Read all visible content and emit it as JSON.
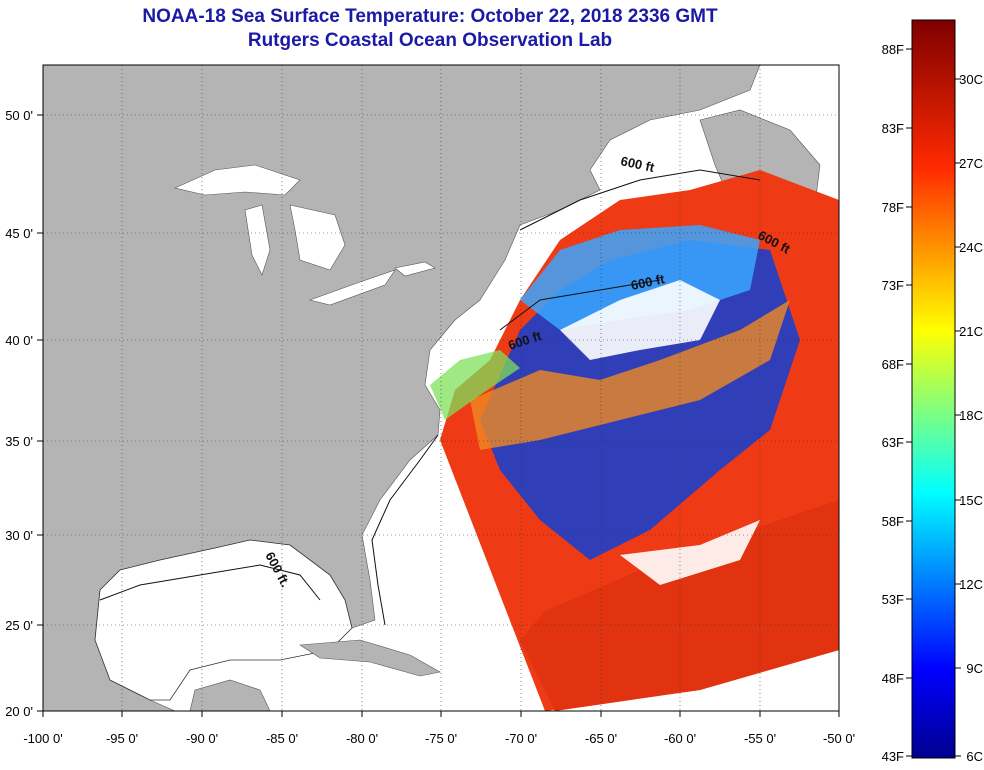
{
  "header": {
    "title_line1": "NOAA-18 Sea Surface Temperature:  October 22, 2018 2336 GMT",
    "title_line2": "Rutgers Coastal Ocean Observation Lab"
  },
  "map": {
    "lon_ticks": [
      "-100 0'",
      "-95 0'",
      "-90 0'",
      "-85 0'",
      "-80 0'",
      "-75 0'",
      "-70 0'",
      "-65 0'",
      "-60 0'",
      "-55 0'",
      "-50 0'"
    ],
    "lat_ticks": [
      "50 0'",
      "45 0'",
      "40 0'",
      "35 0'",
      "30 0'",
      "25 0'",
      "20 0'"
    ],
    "contour_labels": [
      "600 ft",
      "600 ft",
      "600 ft",
      "600 ft",
      "600 ft."
    ]
  },
  "colorbar": {
    "f_labels": [
      "88F",
      "83F",
      "78F",
      "73F",
      "68F",
      "63F",
      "58F",
      "53F",
      "48F",
      "43F"
    ],
    "c_labels": [
      "30C",
      "27C",
      "24C",
      "21C",
      "18C",
      "15C",
      "12C",
      "9C",
      "6C"
    ]
  },
  "colors": {
    "land": "#b4b4b4",
    "water": "#ffffff",
    "warm": "#ee3b16",
    "cool": "#1b3fc9",
    "title": "#1a1aa6"
  }
}
